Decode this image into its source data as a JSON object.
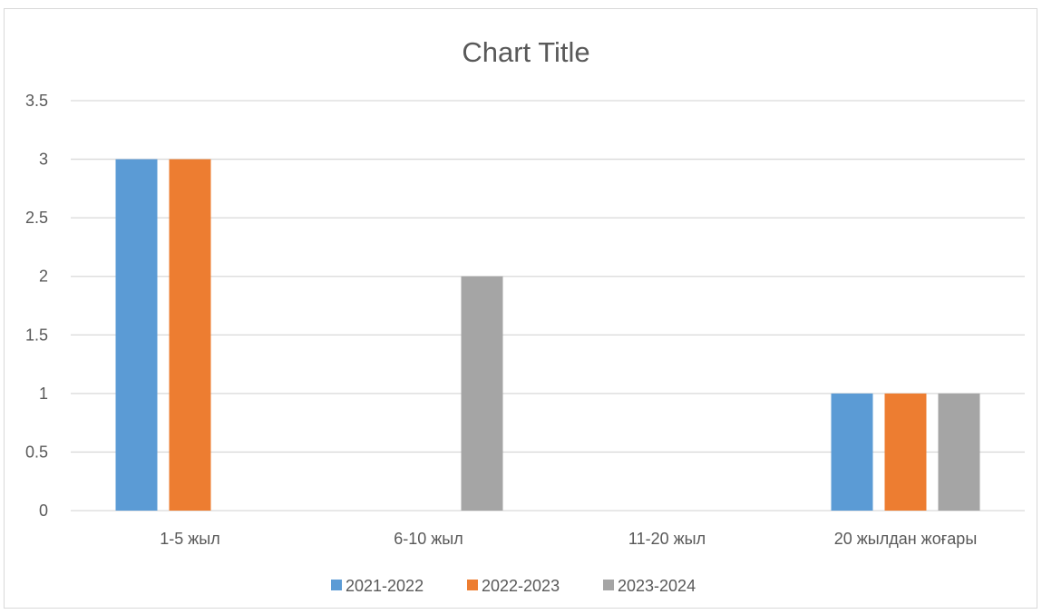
{
  "chart_data": {
    "type": "bar",
    "title": "Chart Title",
    "xlabel": "",
    "ylabel": "",
    "categories": [
      "1-5 жыл",
      "6-10 жыл",
      "11-20 жыл",
      "20 жылдан жоғары"
    ],
    "series": [
      {
        "name": "2021-2022",
        "color": "#5b9bd5",
        "values": [
          3,
          0,
          0,
          1
        ]
      },
      {
        "name": "2022-2023",
        "color": "#ed7d31",
        "values": [
          3,
          0,
          0,
          1
        ]
      },
      {
        "name": "2023-2024",
        "color": "#a5a5a5",
        "values": [
          0,
          2,
          0,
          1
        ]
      }
    ],
    "ylim": [
      0,
      3.5
    ],
    "yticks": [
      "0",
      "0.5",
      "1",
      "1.5",
      "2",
      "2.5",
      "3",
      "3.5"
    ],
    "grid": true,
    "gridline_color": "#d9d9d9",
    "legend_position": "bottom"
  }
}
